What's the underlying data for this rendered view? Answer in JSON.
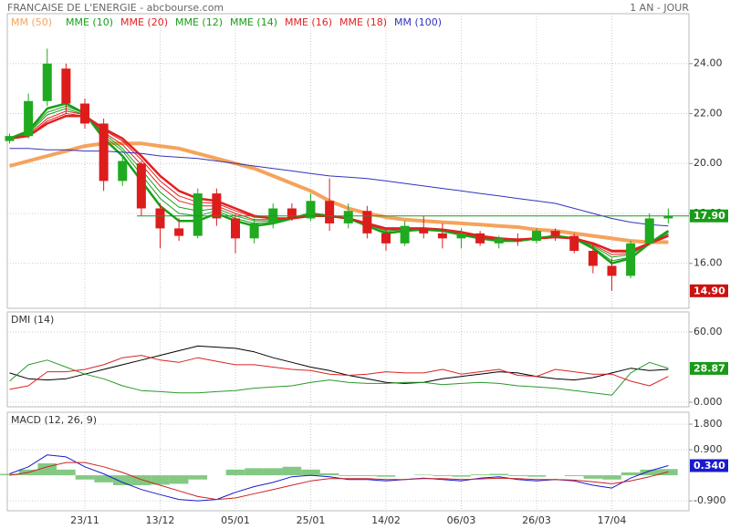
{
  "header": {
    "title": "FRANCAISE DE L'ENERGIE - abcbourse.com",
    "period": "1 AN - JOUR"
  },
  "chart_data": [
    {
      "type": "candlestick",
      "up_color": "#1faa1f",
      "down_color": "#dd1c1c",
      "grid": true,
      "open": [
        20.9,
        21.1,
        22.5,
        23.8,
        22.4,
        21.6,
        19.3,
        20.0,
        18.2,
        17.4,
        17.1,
        18.8,
        17.8,
        17.0,
        17.6,
        18.2,
        17.8,
        18.5,
        17.6,
        18.1,
        17.2,
        16.8,
        17.4,
        17.2,
        17.0,
        17.2,
        16.8,
        17.0,
        16.9,
        17.3,
        17.1,
        16.5,
        15.9,
        15.5,
        16.8,
        17.8
      ],
      "high": [
        21.2,
        22.8,
        24.6,
        24.0,
        22.6,
        21.8,
        20.3,
        20.1,
        18.4,
        17.8,
        19.0,
        19.0,
        18.0,
        17.8,
        18.4,
        18.4,
        18.8,
        19.4,
        18.4,
        18.3,
        17.4,
        17.7,
        17.9,
        17.6,
        17.4,
        17.3,
        17.1,
        17.2,
        17.4,
        17.4,
        17.2,
        16.8,
        16.2,
        16.9,
        18.0,
        18.2
      ],
      "low": [
        20.8,
        21.0,
        22.3,
        22.0,
        21.4,
        18.9,
        19.1,
        17.9,
        16.6,
        16.9,
        17.0,
        17.5,
        16.4,
        16.8,
        17.4,
        17.7,
        17.7,
        17.3,
        17.4,
        17.0,
        16.5,
        16.7,
        17.0,
        16.6,
        16.6,
        16.7,
        16.6,
        16.7,
        16.8,
        16.9,
        16.4,
        15.6,
        14.9,
        15.4,
        16.7,
        17.6
      ],
      "close": [
        21.1,
        22.5,
        24.0,
        22.4,
        21.6,
        19.3,
        20.1,
        18.2,
        17.4,
        17.1,
        18.8,
        17.8,
        17.0,
        17.6,
        18.2,
        17.8,
        18.5,
        17.6,
        18.1,
        17.2,
        16.8,
        17.5,
        17.2,
        17.0,
        17.2,
        16.8,
        17.0,
        16.9,
        17.3,
        17.1,
        16.5,
        15.9,
        15.5,
        16.8,
        17.8,
        17.9
      ],
      "series": [
        {
          "name": "MM (50)",
          "color": "#f5a35c",
          "width": 4,
          "values": [
            19.9,
            20.1,
            20.3,
            20.5,
            20.7,
            20.8,
            20.8,
            20.8,
            20.7,
            20.6,
            20.4,
            20.2,
            20.0,
            19.8,
            19.5,
            19.2,
            18.9,
            18.5,
            18.2,
            18.0,
            17.85,
            17.75,
            17.7,
            17.65,
            17.6,
            17.55,
            17.5,
            17.45,
            17.35,
            17.3,
            17.2,
            17.1,
            17.0,
            16.9,
            16.85,
            16.85
          ]
        },
        {
          "name": "MME (10)",
          "color": "#18a018",
          "width": 2.5,
          "values": [
            21.0,
            21.3,
            22.2,
            22.4,
            22.0,
            21.0,
            20.3,
            19.3,
            18.3,
            17.7,
            17.7,
            18.0,
            17.7,
            17.5,
            17.6,
            17.8,
            18.0,
            17.9,
            17.8,
            17.5,
            17.2,
            17.3,
            17.35,
            17.3,
            17.15,
            17.0,
            16.9,
            16.9,
            17.0,
            17.1,
            17.0,
            16.6,
            16.0,
            16.2,
            16.8,
            17.3
          ]
        },
        {
          "name": "MME (20)",
          "color": "#e32020",
          "width": 2.5,
          "values": [
            21.0,
            21.1,
            21.6,
            21.9,
            21.9,
            21.4,
            21.0,
            20.3,
            19.5,
            18.9,
            18.6,
            18.5,
            18.2,
            17.9,
            17.8,
            17.8,
            17.9,
            17.9,
            17.8,
            17.6,
            17.4,
            17.4,
            17.4,
            17.35,
            17.25,
            17.1,
            17.0,
            16.95,
            17.0,
            17.05,
            17.0,
            16.8,
            16.5,
            16.5,
            16.8,
            17.1
          ]
        },
        {
          "name": "MME (12)",
          "color": "#18a018",
          "width": 1,
          "values": [
            21.0,
            21.25,
            22.05,
            22.3,
            22.0,
            21.1,
            20.5,
            19.55,
            18.6,
            18.0,
            17.9,
            18.1,
            17.8,
            17.6,
            17.65,
            17.8,
            18.0,
            17.9,
            17.8,
            17.5,
            17.25,
            17.3,
            17.35,
            17.3,
            17.2,
            17.0,
            16.9,
            16.9,
            17.0,
            17.1,
            17.0,
            16.65,
            16.1,
            16.25,
            16.8,
            17.25
          ]
        },
        {
          "name": "MME (14)",
          "color": "#18a018",
          "width": 1,
          "values": [
            21.0,
            21.2,
            21.95,
            22.2,
            21.95,
            21.2,
            20.6,
            19.75,
            18.85,
            18.25,
            18.1,
            18.2,
            17.9,
            17.7,
            17.7,
            17.8,
            17.95,
            17.9,
            17.8,
            17.55,
            17.3,
            17.35,
            17.4,
            17.3,
            17.2,
            17.05,
            16.95,
            16.9,
            17.0,
            17.1,
            17.0,
            16.7,
            16.25,
            16.35,
            16.8,
            17.2
          ]
        },
        {
          "name": "MME (16)",
          "color": "#e32020",
          "width": 1,
          "values": [
            21.0,
            21.15,
            21.8,
            22.1,
            21.95,
            21.25,
            20.75,
            19.95,
            19.1,
            18.5,
            18.3,
            18.3,
            18.0,
            17.75,
            17.75,
            17.8,
            17.95,
            17.9,
            17.8,
            17.55,
            17.35,
            17.35,
            17.4,
            17.35,
            17.2,
            17.05,
            16.95,
            16.95,
            17.0,
            17.05,
            17.0,
            16.75,
            16.35,
            16.4,
            16.8,
            17.15
          ]
        },
        {
          "name": "MME (18)",
          "color": "#e32020",
          "width": 1,
          "values": [
            21.0,
            21.1,
            21.7,
            22.0,
            21.9,
            21.35,
            20.9,
            20.15,
            19.3,
            18.7,
            18.45,
            18.4,
            18.1,
            17.85,
            17.8,
            17.8,
            17.9,
            17.9,
            17.8,
            17.6,
            17.4,
            17.4,
            17.4,
            17.35,
            17.25,
            17.1,
            17.0,
            16.95,
            17.0,
            17.05,
            17.0,
            16.8,
            16.45,
            16.45,
            16.8,
            17.1
          ]
        },
        {
          "name": "MM (100)",
          "color": "#3333bb",
          "width": 1,
          "values": [
            20.6,
            20.6,
            20.55,
            20.55,
            20.5,
            20.5,
            20.45,
            20.4,
            20.3,
            20.25,
            20.2,
            20.1,
            20.0,
            19.9,
            19.8,
            19.7,
            19.6,
            19.5,
            19.45,
            19.4,
            19.3,
            19.2,
            19.1,
            19.0,
            18.9,
            18.8,
            18.7,
            18.6,
            18.5,
            18.4,
            18.2,
            18.0,
            17.8,
            17.65,
            17.55,
            17.5
          ]
        }
      ],
      "ylim": [
        14.2,
        26.0
      ],
      "yticks": [
        {
          "value": 16,
          "label": "16.00"
        },
        {
          "value": 18,
          "label": "18.00"
        },
        {
          "value": 20,
          "label": "20.00"
        },
        {
          "value": 22,
          "label": "22.00"
        },
        {
          "value": 24,
          "label": "24.00"
        }
      ],
      "price_labels": [
        {
          "value": 17.9,
          "label": "17.90",
          "color": "#1a9a1a"
        },
        {
          "value": 14.9,
          "label": "14.90",
          "color": "#cc1111"
        }
      ]
    },
    {
      "type": "line",
      "title": "DMI (14)",
      "grid": true,
      "series": [
        {
          "color": "#000000",
          "width": 1,
          "values": [
            25,
            20,
            19,
            20,
            24,
            28,
            32,
            36,
            40,
            44,
            48,
            47,
            46,
            43,
            38,
            34,
            30,
            27,
            23,
            20,
            17,
            16,
            17,
            20,
            22,
            24,
            26,
            25,
            22,
            20,
            19,
            21,
            25,
            29,
            27,
            28
          ]
        },
        {
          "color": "#2a9a2a",
          "width": 1,
          "values": [
            18,
            32,
            36,
            30,
            24,
            20,
            14,
            10,
            9,
            8,
            8,
            9,
            10,
            12,
            13,
            14,
            17,
            19,
            17,
            16,
            16,
            17,
            17,
            15,
            16,
            17,
            16,
            14,
            13,
            12,
            10,
            8,
            6,
            25,
            34,
            28.87
          ]
        },
        {
          "color": "#dd2222",
          "width": 1,
          "values": [
            11,
            14,
            26,
            26,
            28,
            32,
            38,
            40,
            36,
            34,
            38,
            35,
            32,
            32,
            30,
            28,
            27,
            24,
            23,
            24,
            26,
            25,
            25,
            28,
            24,
            26,
            28,
            23,
            22,
            28,
            26,
            24,
            24,
            18,
            14,
            22
          ]
        }
      ],
      "ylim": [
        -3.9,
        77.1
      ],
      "yticks": [
        {
          "value": 0,
          "label": "0.000"
        },
        {
          "value": 60,
          "label": "60.00"
        }
      ],
      "price_labels": [
        {
          "value": 28.87,
          "label": "28.87",
          "color": "#1a9a1a"
        }
      ]
    },
    {
      "type": "macd",
      "title": "MACD (12, 26, 9)",
      "grid": true,
      "categories": [
        null,
        null,
        null,
        null,
        "23/11",
        null,
        null,
        null,
        "13/12",
        null,
        null,
        null,
        "05/01",
        null,
        null,
        null,
        "25/01",
        null,
        null,
        null,
        "14/02",
        null,
        null,
        null,
        "06/03",
        null,
        null,
        null,
        "26/03",
        null,
        null,
        null,
        "17/04",
        null,
        null,
        null
      ],
      "series": [
        {
          "style": "histogram",
          "color": "#6dbf6d",
          "values": [
            0.05,
            0.2,
            0.42,
            0.2,
            -0.15,
            -0.25,
            -0.35,
            -0.35,
            -0.33,
            -0.3,
            -0.15,
            0.0,
            0.2,
            0.25,
            0.25,
            0.3,
            0.2,
            0.07,
            -0.03,
            -0.03,
            -0.05,
            0.0,
            0.02,
            -0.03,
            -0.05,
            0.03,
            0.05,
            -0.03,
            -0.05,
            0.0,
            -0.03,
            -0.12,
            -0.15,
            0.1,
            0.2,
            0.22
          ]
        },
        {
          "color": "#1a1acc",
          "width": 1,
          "values": [
            0.05,
            0.3,
            0.72,
            0.65,
            0.3,
            0.05,
            -0.25,
            -0.5,
            -0.68,
            -0.85,
            -0.9,
            -0.85,
            -0.6,
            -0.4,
            -0.25,
            -0.05,
            0.0,
            -0.05,
            -0.15,
            -0.15,
            -0.2,
            -0.15,
            -0.1,
            -0.15,
            -0.2,
            -0.1,
            -0.05,
            -0.15,
            -0.2,
            -0.15,
            -0.2,
            -0.35,
            -0.45,
            -0.1,
            0.15,
            0.34
          ]
        },
        {
          "color": "#cc2222",
          "width": 1,
          "values": [
            0.0,
            0.1,
            0.3,
            0.45,
            0.45,
            0.3,
            0.1,
            -0.15,
            -0.35,
            -0.55,
            -0.75,
            -0.85,
            -0.8,
            -0.65,
            -0.5,
            -0.35,
            -0.2,
            -0.12,
            -0.12,
            -0.12,
            -0.15,
            -0.15,
            -0.12,
            -0.12,
            -0.15,
            -0.13,
            -0.1,
            -0.12,
            -0.15,
            -0.15,
            -0.17,
            -0.23,
            -0.3,
            -0.2,
            -0.05,
            0.12
          ]
        }
      ],
      "ylim": [
        -1.25,
        2.22
      ],
      "yticks": [
        {
          "value": -0.9,
          "label": "-0.900"
        },
        {
          "value": 0.9,
          "label": "0.900"
        },
        {
          "value": 1.8,
          "label": "1.800"
        }
      ],
      "price_labels": [
        {
          "value": 0.34,
          "label": "0.340",
          "color": "#1a1acc"
        }
      ]
    }
  ]
}
